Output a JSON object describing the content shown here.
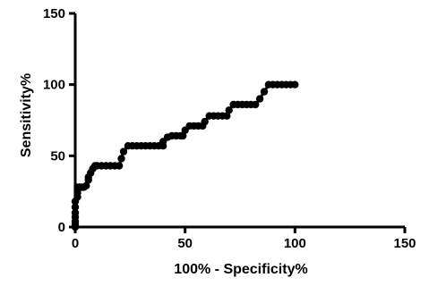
{
  "chart_data": {
    "type": "line",
    "title": "",
    "xlabel": "100% - Specificity%",
    "ylabel": "Sensitivity%",
    "xlim": [
      0,
      150
    ],
    "ylim": [
      0,
      150
    ],
    "xticks": [
      0,
      50,
      100,
      150
    ],
    "yticks": [
      0,
      50,
      100,
      150
    ],
    "grid": false,
    "legend": "none",
    "line_color": "#000000",
    "marker": "filled-circle",
    "series": [
      {
        "x": [
          0,
          0,
          0,
          0,
          0,
          0,
          0,
          1,
          1,
          1,
          1,
          2,
          2,
          3,
          4,
          5,
          6,
          6,
          7,
          8,
          9,
          10,
          12,
          14,
          16,
          18,
          20,
          21,
          22,
          24,
          26,
          28,
          30,
          32,
          34,
          36,
          38,
          40,
          40,
          42,
          44,
          46,
          48,
          49,
          50,
          52,
          54,
          56,
          58,
          59,
          61,
          63,
          65,
          67,
          69,
          70,
          72,
          74,
          76,
          78,
          80,
          82,
          84,
          86,
          88,
          90,
          92,
          94,
          96,
          98,
          100
        ],
        "y": [
          0,
          2,
          4,
          7,
          10,
          14,
          18,
          21,
          24,
          26,
          28,
          28,
          28,
          28,
          28,
          29,
          33,
          35,
          38,
          41,
          43,
          43,
          43,
          43,
          43,
          43,
          43,
          48,
          53,
          57,
          57,
          57,
          57,
          57,
          57,
          57,
          57,
          57,
          60,
          63,
          64,
          64,
          64,
          64,
          68,
          71,
          71,
          71,
          71,
          74,
          78,
          78,
          78,
          78,
          78,
          82,
          86,
          86,
          86,
          86,
          86,
          86,
          90,
          95,
          100,
          100,
          100,
          100,
          100,
          100,
          100
        ]
      }
    ]
  }
}
